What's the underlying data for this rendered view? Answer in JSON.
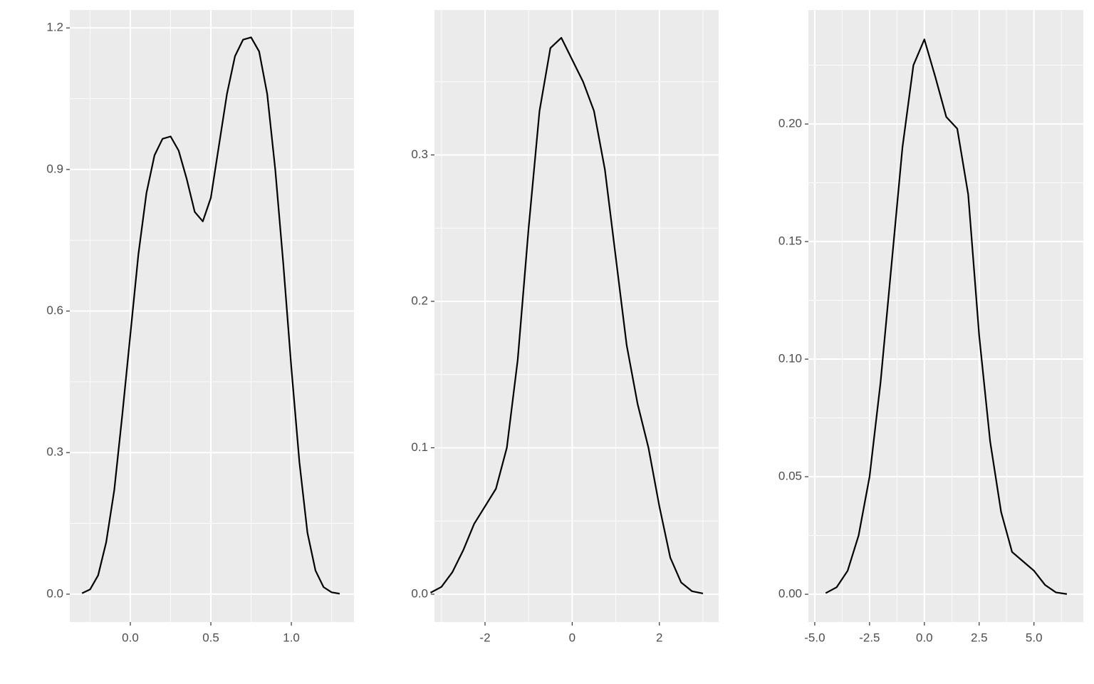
{
  "chart_data": [
    {
      "type": "line",
      "color": "#000000",
      "grid": true,
      "x": [
        -0.3,
        -0.25,
        -0.2,
        -0.15,
        -0.1,
        -0.05,
        0,
        0.05,
        0.1,
        0.15,
        0.2,
        0.25,
        0.3,
        0.35,
        0.4,
        0.45,
        0.5,
        0.55,
        0.6,
        0.65,
        0.7,
        0.75,
        0.8,
        0.85,
        0.9,
        0.95,
        1,
        1.05,
        1.1,
        1.15,
        1.2,
        1.25,
        1.3
      ],
      "values": [
        0.002,
        0.01,
        0.04,
        0.11,
        0.22,
        0.38,
        0.55,
        0.72,
        0.85,
        0.93,
        0.965,
        0.97,
        0.94,
        0.88,
        0.81,
        0.79,
        0.84,
        0.95,
        1.06,
        1.14,
        1.175,
        1.18,
        1.15,
        1.06,
        0.9,
        0.7,
        0.48,
        0.28,
        0.13,
        0.05,
        0.015,
        0.004,
        0.001
      ],
      "xlim": [
        -0.376,
        1.389
      ],
      "ylim": [
        -0.059,
        1.238
      ],
      "xticks": [
        {
          "value": 0,
          "label": "0.0"
        },
        0.5,
        {
          "value": 1,
          "label": "1.0"
        }
      ],
      "yticks": [
        {
          "value": 0,
          "label": "0.0"
        },
        0.3,
        0.6,
        0.9,
        1.2
      ],
      "minor_xticks": [
        -0.25,
        0.25,
        0.75,
        1.25
      ],
      "minor_yticks": [
        0.15,
        0.45,
        0.75,
        1.05
      ]
    },
    {
      "type": "line",
      "color": "#000000",
      "grid": true,
      "x": [
        -3.25,
        -3,
        -2.75,
        -2.5,
        -2.25,
        -2,
        -1.75,
        -1.5,
        -1.25,
        -1,
        -0.75,
        -0.5,
        -0.25,
        0,
        0.25,
        0.5,
        0.75,
        1,
        1.25,
        1.5,
        1.75,
        2,
        2.25,
        2.5,
        2.75,
        3
      ],
      "values": [
        0.001,
        0.005,
        0.015,
        0.03,
        0.048,
        0.06,
        0.072,
        0.1,
        0.16,
        0.25,
        0.33,
        0.373,
        0.38,
        0.365,
        0.35,
        0.33,
        0.29,
        0.23,
        0.17,
        0.13,
        0.1,
        0.06,
        0.025,
        0.008,
        0.002,
        0.0005
      ],
      "xlim": [
        -3.16,
        3.36
      ],
      "ylim": [
        -0.019,
        0.399
      ],
      "xticks": [
        -2,
        0,
        2
      ],
      "yticks": [
        {
          "value": 0,
          "label": "0.0"
        },
        0.1,
        0.2,
        0.3
      ],
      "minor_xticks": [
        -3,
        -1,
        1,
        3
      ],
      "minor_yticks": [
        0.05,
        0.15,
        0.25,
        0.35
      ]
    },
    {
      "type": "line",
      "color": "#000000",
      "grid": true,
      "x": [
        -4.5,
        -4,
        -3.5,
        -3,
        -2.5,
        -2,
        -1.5,
        -1,
        -0.5,
        0,
        0.5,
        1,
        1.5,
        2,
        2.5,
        3,
        3.5,
        4,
        4.5,
        5,
        5.5,
        6,
        6.5
      ],
      "values": [
        0.0005,
        0.003,
        0.01,
        0.025,
        0.05,
        0.09,
        0.14,
        0.19,
        0.225,
        0.236,
        0.22,
        0.203,
        0.198,
        0.17,
        0.11,
        0.065,
        0.035,
        0.018,
        0.014,
        0.01,
        0.004,
        0.0008,
        0.0001
      ],
      "xlim": [
        -5.29,
        7.25
      ],
      "ylim": [
        -0.0118,
        0.2485
      ],
      "xticks": [
        {
          "value": -5,
          "label": "-5.0"
        },
        -2.5,
        {
          "value": 0,
          "label": "0.0"
        },
        2.5,
        {
          "value": 5,
          "label": "5.0"
        }
      ],
      "yticks": [
        {
          "value": 0,
          "label": "0.00"
        },
        0.05,
        {
          "value": 0.1,
          "label": "0.10"
        },
        0.15,
        {
          "value": 0.2,
          "label": "0.20"
        }
      ],
      "minor_xticks": [
        -3.75,
        -1.25,
        1.25,
        3.75,
        6.25
      ],
      "minor_yticks": [
        0.025,
        0.075,
        0.125,
        0.175,
        0.225
      ]
    }
  ]
}
